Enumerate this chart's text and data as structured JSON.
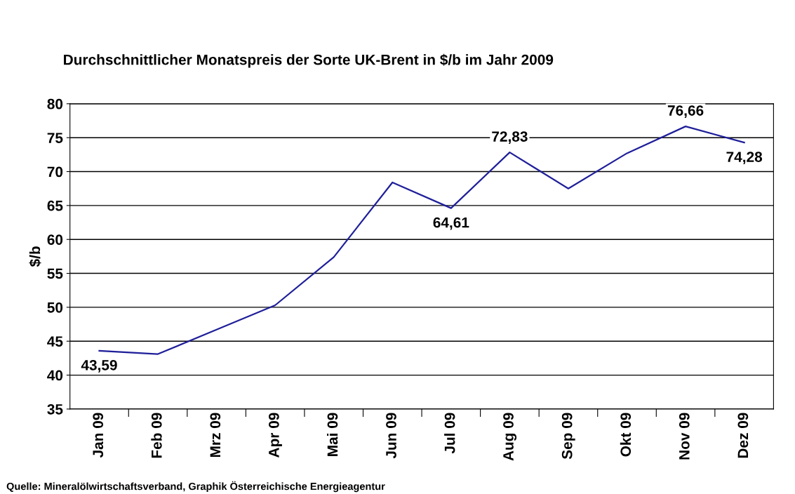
{
  "chart_data": {
    "type": "line",
    "title": "Durchschnittlicher Monatspreis der Sorte UK-Brent in $/b im Jahr 2009",
    "ylabel": "$/b",
    "categories": [
      "Jan 09",
      "Feb 09",
      "Mrz 09",
      "Apr 09",
      "Mai 09",
      "Jun 09",
      "Jul 09",
      "Aug 09",
      "Sep 09",
      "Okt 09",
      "Nov 09",
      "Dez 09"
    ],
    "series": [
      {
        "color": "#1f1f9a",
        "values": [
          43.59,
          43.1,
          46.7,
          50.3,
          57.4,
          68.4,
          64.61,
          72.83,
          67.5,
          72.7,
          76.66,
          74.28
        ],
        "value_labels": [
          "43,59",
          null,
          null,
          null,
          null,
          null,
          "64,61",
          "72,83",
          null,
          null,
          "76,66",
          "74,28"
        ]
      }
    ],
    "ylim": [
      35,
      80
    ],
    "yticks": [
      35,
      40,
      45,
      50,
      55,
      60,
      65,
      70,
      75,
      80
    ],
    "grid": "y",
    "legend": false,
    "marker": "none",
    "line_style": "solid",
    "annotations": [
      "Quelle: Mineralölwirtschaftsverband, Graphik Österreichische Energieagentur"
    ]
  }
}
